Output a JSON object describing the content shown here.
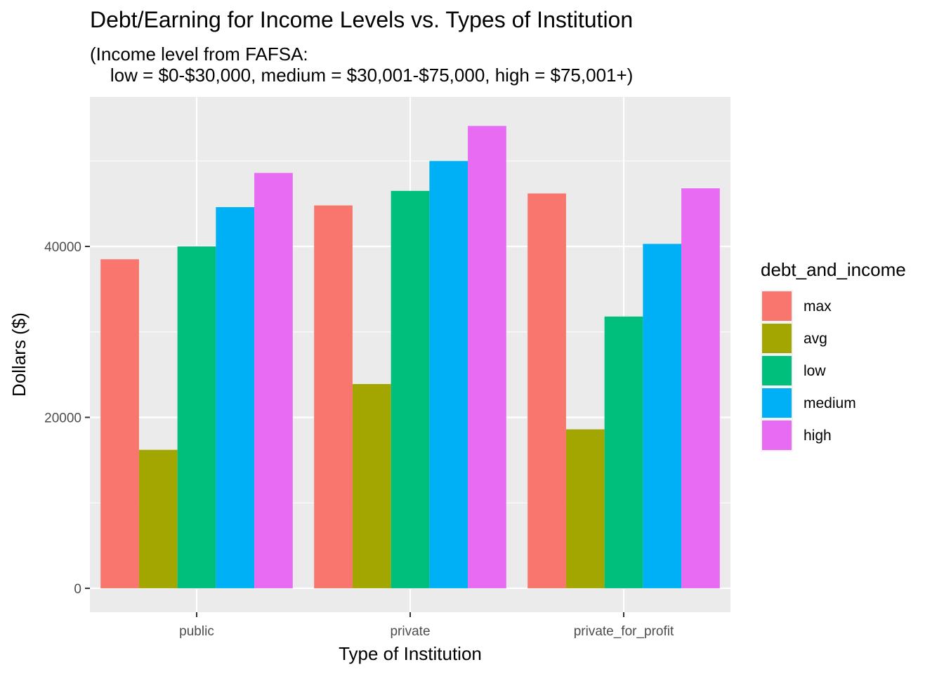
{
  "chart_data": {
    "type": "bar",
    "title": "Debt/Earning for Income Levels vs. Types of Institution",
    "subtitle": "(Income level from FAFSA:\n    low = $0-$30,000, medium = $30,001-$75,000, high = $75,001+)",
    "xlabel": "Type of Institution",
    "ylabel": "Dollars ($)",
    "categories": [
      "public",
      "private",
      "private_for_profit"
    ],
    "ylim": [
      -2800,
      57500
    ],
    "yticks": [
      0,
      20000,
      40000
    ],
    "ytick_labels": [
      "0",
      "20000",
      "40000"
    ],
    "grid": true,
    "legend": {
      "title": "debt_and_income",
      "position": "right"
    },
    "series": [
      {
        "name": "max",
        "color": "#F8766D",
        "values": [
          38500,
          44800,
          46200
        ]
      },
      {
        "name": "avg",
        "color": "#A3A500",
        "values": [
          16200,
          23900,
          18600
        ]
      },
      {
        "name": "low",
        "color": "#00BF7D",
        "values": [
          40000,
          46500,
          31800
        ]
      },
      {
        "name": "medium",
        "color": "#00B0F6",
        "values": [
          44600,
          50000,
          40300
        ]
      },
      {
        "name": "high",
        "color": "#E76BF3",
        "values": [
          48600,
          54100,
          46800
        ]
      }
    ]
  }
}
